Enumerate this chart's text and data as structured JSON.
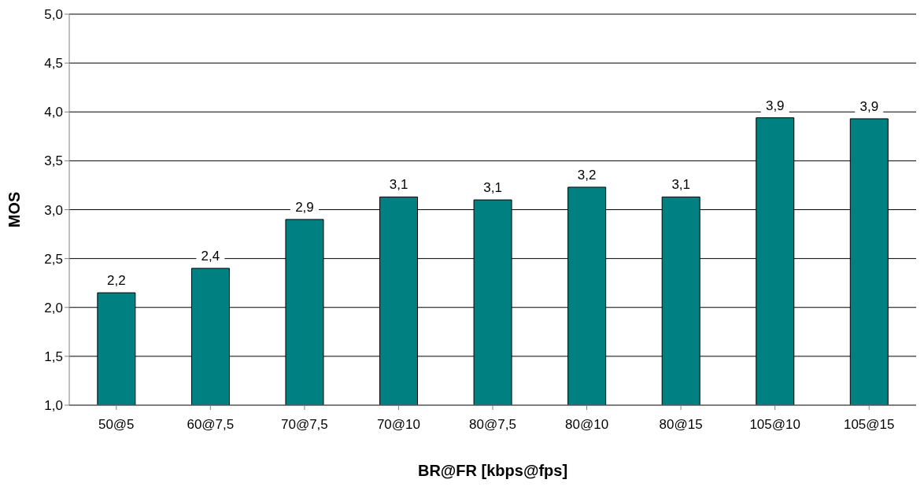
{
  "chart_data": {
    "type": "bar",
    "xlabel": "BR@FR [kbps@fps]",
    "ylabel": "MOS",
    "categories": [
      "50@5",
      "60@7,5",
      "70@7,5",
      "70@10",
      "80@7,5",
      "80@10",
      "80@15",
      "105@10",
      "105@15"
    ],
    "values": [
      2.15,
      2.4,
      2.9,
      3.13,
      3.1,
      3.23,
      3.13,
      3.94,
      3.93
    ],
    "value_labels": [
      "2,2",
      "2,4",
      "2,9",
      "3,1",
      "3,1",
      "3,2",
      "3,1",
      "3,9",
      "3,9"
    ],
    "color": "#008080",
    "ylim": [
      1,
      5
    ],
    "yticks": [
      {
        "value": 1,
        "label": "1,0"
      },
      {
        "value": 1.5,
        "label": "1,5"
      },
      {
        "value": 2,
        "label": "2,0"
      },
      {
        "value": 2.5,
        "label": "2,5"
      },
      {
        "value": 3,
        "label": "3,0"
      },
      {
        "value": 3.5,
        "label": "3,5"
      },
      {
        "value": 4,
        "label": "4,0"
      },
      {
        "value": 4.5,
        "label": "4,5"
      },
      {
        "value": 5,
        "label": "5,0"
      }
    ],
    "grid": "y"
  }
}
